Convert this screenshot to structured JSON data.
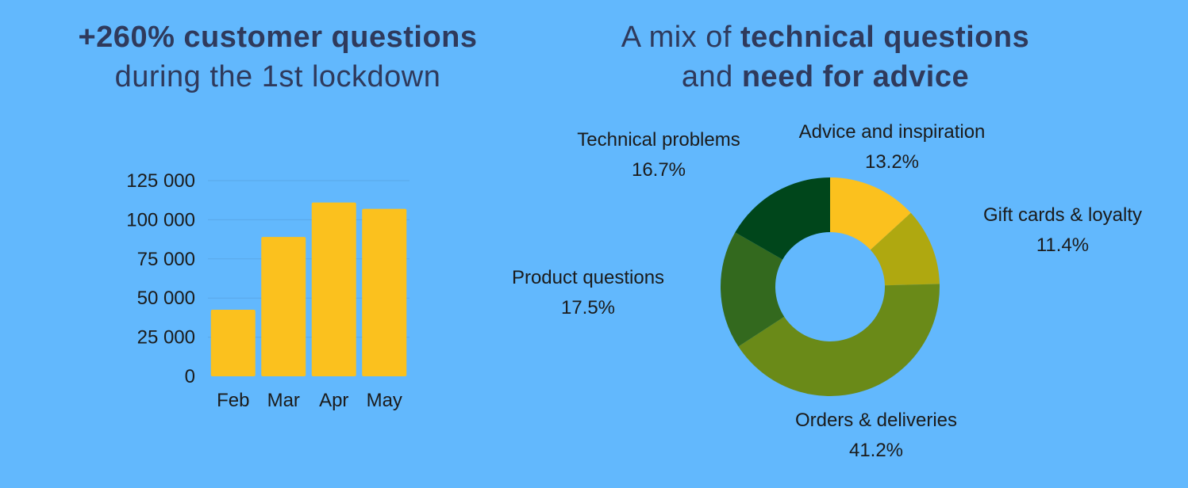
{
  "left_title": {
    "bold": "+260% customer questions",
    "normal": "during the 1st lockdown"
  },
  "right_title": {
    "prefix": "A mix of ",
    "bold1": "technical questions",
    "line2_prefix": "and ",
    "bold2": "need for advice"
  },
  "colors": {
    "background": "#62b8fd",
    "bar": "#fbc11e",
    "title_text": "#2f3a5c",
    "pie": [
      "#fbc11e",
      "#afa810",
      "#6a8a18",
      "#33691e",
      "#00461b"
    ]
  },
  "chart_data": [
    {
      "type": "bar",
      "categories": [
        "Feb",
        "Mar",
        "Apr",
        "May"
      ],
      "values": [
        42500,
        89000,
        111000,
        107000
      ],
      "yticks": [
        "0",
        "25 000",
        "50 000",
        "75 000",
        "100 000",
        "125 000"
      ],
      "ylim": [
        0,
        125000
      ],
      "grid": true
    },
    {
      "type": "pie",
      "donut": true,
      "slices": [
        {
          "label": "Advice and inspiration",
          "pct": "13.2%",
          "value": 13.2
        },
        {
          "label": "Gift cards & loyalty",
          "pct": "11.4%",
          "value": 11.4
        },
        {
          "label": "Orders & deliveries",
          "pct": "41.2%",
          "value": 41.2
        },
        {
          "label": "Product questions",
          "pct": "17.5%",
          "value": 17.5
        },
        {
          "label": "Technical problems",
          "pct": "16.7%",
          "value": 16.7
        }
      ]
    }
  ]
}
